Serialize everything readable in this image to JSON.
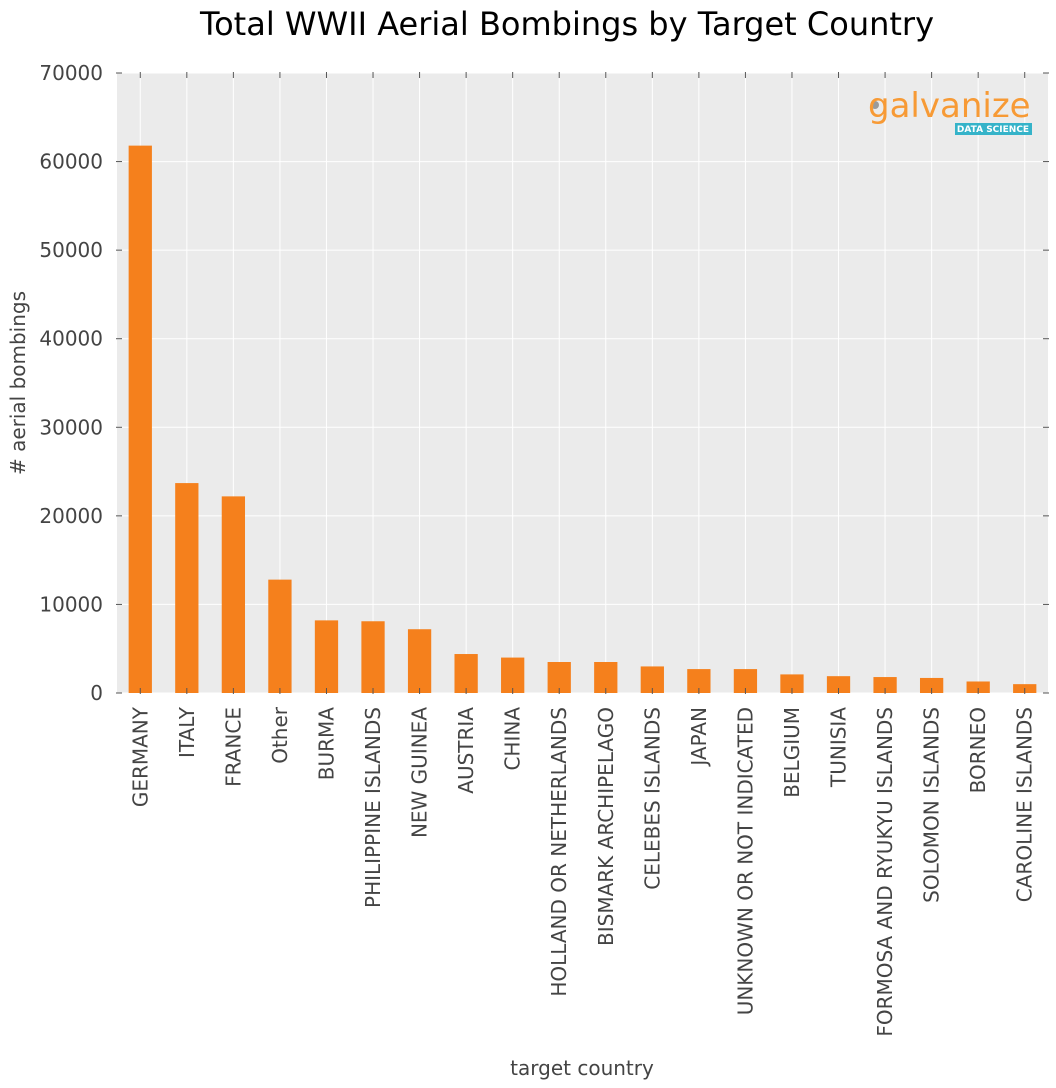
{
  "colors": {
    "bar": "#f5801c",
    "plot_bg": "#ebebeb",
    "grid": "#ffffff",
    "logo_text": "#f79a35",
    "logo_badge": "#35b3c9"
  },
  "logo": {
    "word": "galvanize",
    "sub": "DATA SCIENCE"
  },
  "chart_data": {
    "type": "bar",
    "title": "Total WWII Aerial Bombings by Target Country",
    "xlabel": "target country",
    "ylabel": "# aerial bombings",
    "ylim": [
      0,
      70000
    ],
    "yticks": [
      0,
      10000,
      20000,
      30000,
      40000,
      50000,
      60000,
      70000
    ],
    "grid": true,
    "categories": [
      "GERMANY",
      "ITALY",
      "FRANCE",
      "Other",
      "BURMA",
      "PHILIPPINE ISLANDS",
      "NEW GUINEA",
      "AUSTRIA",
      "CHINA",
      "HOLLAND OR NETHERLANDS",
      "BISMARK ARCHIPELAGO",
      "CELEBES ISLANDS",
      "JAPAN",
      "UNKNOWN OR NOT INDICATED",
      "BELGIUM",
      "TUNISIA",
      "FORMOSA AND RYUKYU ISLANDS",
      "SOLOMON ISLANDS",
      "BORNEO",
      "CAROLINE ISLANDS"
    ],
    "values": [
      61800,
      23700,
      22200,
      12800,
      8200,
      8100,
      7200,
      4400,
      4000,
      3500,
      3500,
      3000,
      2700,
      2700,
      2100,
      1900,
      1800,
      1700,
      1300,
      1000
    ]
  }
}
